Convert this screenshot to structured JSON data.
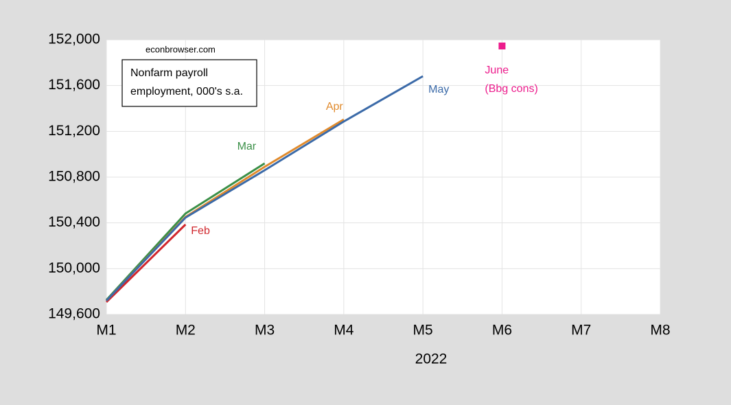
{
  "chart_data": {
    "type": "line",
    "source": "econbrowser.com",
    "note_lines": [
      "Nonfarm payroll",
      "employment, 000's s.a."
    ],
    "x_label": "2022",
    "categories": [
      "M1",
      "M2",
      "M3",
      "M4",
      "M5",
      "M6",
      "M7",
      "M8"
    ],
    "ylim": [
      149600,
      152000
    ],
    "yticks": [
      {
        "value": 149600,
        "label": "149,600"
      },
      {
        "value": 150000,
        "label": "150,000"
      },
      {
        "value": 150400,
        "label": "150,400"
      },
      {
        "value": 150800,
        "label": "150,800"
      },
      {
        "value": 151200,
        "label": "151,200"
      },
      {
        "value": 151600,
        "label": "151,600"
      },
      {
        "value": 152000,
        "label": "152,000"
      }
    ],
    "grid": true,
    "series": [
      {
        "name": "Feb",
        "color": "#d0262c",
        "values": [
          149708,
          150386,
          null,
          null,
          null,
          null,
          null,
          null
        ]
      },
      {
        "name": "Mar",
        "color": "#3a8f47",
        "values": [
          149726,
          150482,
          150920,
          null,
          null,
          null,
          null,
          null
        ]
      },
      {
        "name": "Apr",
        "color": "#e08a2c",
        "values": [
          149720,
          150452,
          150890,
          151304,
          null,
          null,
          null,
          null
        ]
      },
      {
        "name": "May",
        "color": "#3b6aa8",
        "values": [
          149720,
          150446,
          150860,
          151286,
          151682,
          null,
          null,
          null
        ]
      },
      {
        "name": "June",
        "note": "(Bbg cons)",
        "color": "#ec1c8c",
        "marker": "square",
        "values": [
          null,
          null,
          null,
          null,
          null,
          151946,
          null,
          null
        ]
      }
    ]
  }
}
